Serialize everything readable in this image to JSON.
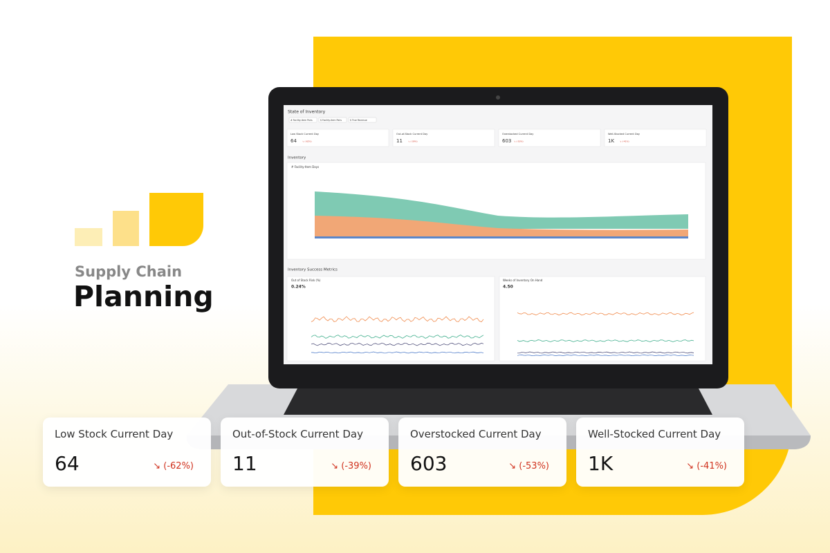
{
  "brand": {
    "subtitle": "Supply Chain",
    "title": "Planning"
  },
  "kpis": [
    {
      "label": "Low Stock Current Day",
      "value": "64",
      "change": "↘ (-62%)"
    },
    {
      "label": "Out-of-Stock Current Day",
      "value": "11",
      "change": "↘ (-39%)"
    },
    {
      "label": "Overstocked Current Day",
      "value": "603",
      "change": "↘ (-53%)"
    },
    {
      "label": "Well-Stocked Current Day",
      "value": "1K",
      "change": "↘ (-41%)"
    }
  ],
  "screen": {
    "title": "State of Inventory",
    "filters": [
      "# Facility-Item Pairs",
      "$ Facility-Item Pairs",
      "$ True Revenue"
    ],
    "section_inventory": "Inventory",
    "inventory_chart_title": "# Facility-Item Days",
    "section_metrics": "Inventory Success Metrics",
    "metric_cards": [
      {
        "label": "Out of Stock Risk (%)",
        "value": "0.24%"
      },
      {
        "label": "Weeks of Inventory On Hand",
        "value": "4.50"
      }
    ]
  }
}
